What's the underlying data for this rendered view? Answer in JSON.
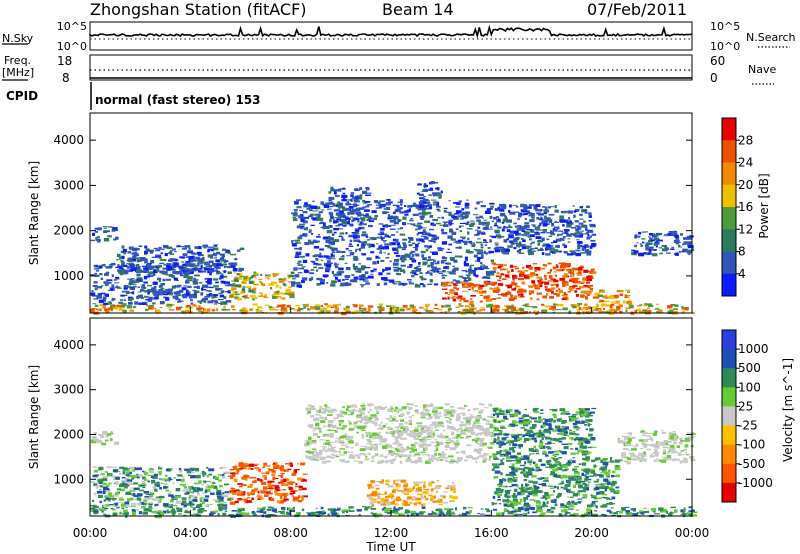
{
  "header": {
    "title": "Zhongshan Station (fitACF)",
    "beam": "Beam 14",
    "date": "07/Feb/2011"
  },
  "strip_panels": {
    "nsky": {
      "left_label": "N.Sky",
      "right_label": "N.Search",
      "ticks": [
        "10^5",
        "10^0"
      ]
    },
    "freq": {
      "left_label": "Freq.",
      "unit_label": "[MHz]",
      "right_label": "Nave",
      "left_ticks": [
        "18",
        "8"
      ],
      "right_ticks": [
        "60",
        "0"
      ]
    },
    "cpid": {
      "label": "CPID",
      "text": "normal (fast stereo) 153"
    }
  },
  "colors": {
    "power": [
      "#0a1cff",
      "#2f55b8",
      "#2e7a5e",
      "#4f9a3c",
      "#f0c000",
      "#f08a00",
      "#ef5000",
      "#e80000"
    ],
    "velocity": [
      "#e80000",
      "#ff5500",
      "#ff8a00",
      "#ffc000",
      "#c8c8c8",
      "#66cc33",
      "#2e8b57",
      "#1e50b4",
      "#2a40e0"
    ],
    "ground_scatter": "#c0c0c0"
  },
  "chart_data": [
    {
      "type": "heatmap",
      "name": "power",
      "ylabel": "Slant Range [km]",
      "ylim": [
        180,
        4600
      ],
      "yticks": [
        1000,
        2000,
        3000,
        4000
      ],
      "xlim": [
        0,
        24
      ],
      "colorbar": {
        "label": "Power [dB]",
        "ticks": [
          "4",
          "8",
          "12",
          "16",
          "20",
          "24",
          "28"
        ],
        "range": [
          0,
          32
        ]
      },
      "regions": [
        {
          "x": [
            0.0,
            24.0
          ],
          "y": [
            200,
            400
          ],
          "level": "mid-high"
        },
        {
          "x": [
            0.0,
            5.5
          ],
          "y": [
            400,
            1300
          ],
          "level": "low"
        },
        {
          "x": [
            0.0,
            1.0
          ],
          "y": [
            1800,
            2100
          ],
          "level": "low"
        },
        {
          "x": [
            1.0,
            6.0
          ],
          "y": [
            1100,
            1700
          ],
          "level": "low"
        },
        {
          "x": [
            5.5,
            8.0
          ],
          "y": [
            500,
            1100
          ],
          "level": "mid"
        },
        {
          "x": [
            8.0,
            16.0
          ],
          "y": [
            800,
            2700
          ],
          "level": "low"
        },
        {
          "x": [
            9.5,
            11.0
          ],
          "y": [
            2200,
            3000
          ],
          "level": "low"
        },
        {
          "x": [
            13.0,
            14.0
          ],
          "y": [
            2500,
            3100
          ],
          "level": "low"
        },
        {
          "x": [
            14.0,
            16.0
          ],
          "y": [
            450,
            900
          ],
          "level": "high"
        },
        {
          "x": [
            16.0,
            20.0
          ],
          "y": [
            500,
            1300
          ],
          "level": "high"
        },
        {
          "x": [
            16.0,
            20.0
          ],
          "y": [
            1500,
            2600
          ],
          "level": "low"
        },
        {
          "x": [
            20.0,
            21.5
          ],
          "y": [
            400,
            700
          ],
          "level": "mid-high"
        },
        {
          "x": [
            21.5,
            24.0
          ],
          "y": [
            1500,
            2000
          ],
          "level": "low"
        }
      ]
    },
    {
      "type": "heatmap",
      "name": "velocity",
      "ylabel": "Slant Range [km]",
      "ylim": [
        180,
        4600
      ],
      "yticks": [
        1000,
        2000,
        3000,
        4000
      ],
      "xlabel": "Time UT",
      "xticks": [
        "00:00",
        "04:00",
        "08:00",
        "12:00",
        "16:00",
        "20:00",
        "00:00"
      ],
      "xlim": [
        0,
        24
      ],
      "colorbar": {
        "label": "Velocity [m s^-1]",
        "ticks": [
          "1000",
          "500",
          "100",
          "25",
          "-25",
          "-100",
          "-500",
          "-1000"
        ]
      },
      "regions": [
        {
          "x": [
            0.0,
            24.0
          ],
          "y": [
            200,
            400
          ],
          "level": "low-positive"
        },
        {
          "x": [
            0.0,
            1.0
          ],
          "y": [
            1800,
            2100
          ],
          "level": "ground"
        },
        {
          "x": [
            0.0,
            5.5
          ],
          "y": [
            400,
            1300
          ],
          "level": "mixed"
        },
        {
          "x": [
            5.5,
            8.5
          ],
          "y": [
            500,
            1400
          ],
          "level": "negative-large"
        },
        {
          "x": [
            8.5,
            16.0
          ],
          "y": [
            1400,
            2700
          ],
          "level": "ground"
        },
        {
          "x": [
            11.0,
            14.5
          ],
          "y": [
            450,
            1000
          ],
          "level": "negative-small"
        },
        {
          "x": [
            16.0,
            21.0
          ],
          "y": [
            400,
            1500
          ],
          "level": "positive"
        },
        {
          "x": [
            16.0,
            20.0
          ],
          "y": [
            1500,
            2600
          ],
          "level": "positive"
        },
        {
          "x": [
            21.0,
            24.0
          ],
          "y": [
            1400,
            2100
          ],
          "level": "ground"
        }
      ]
    }
  ]
}
